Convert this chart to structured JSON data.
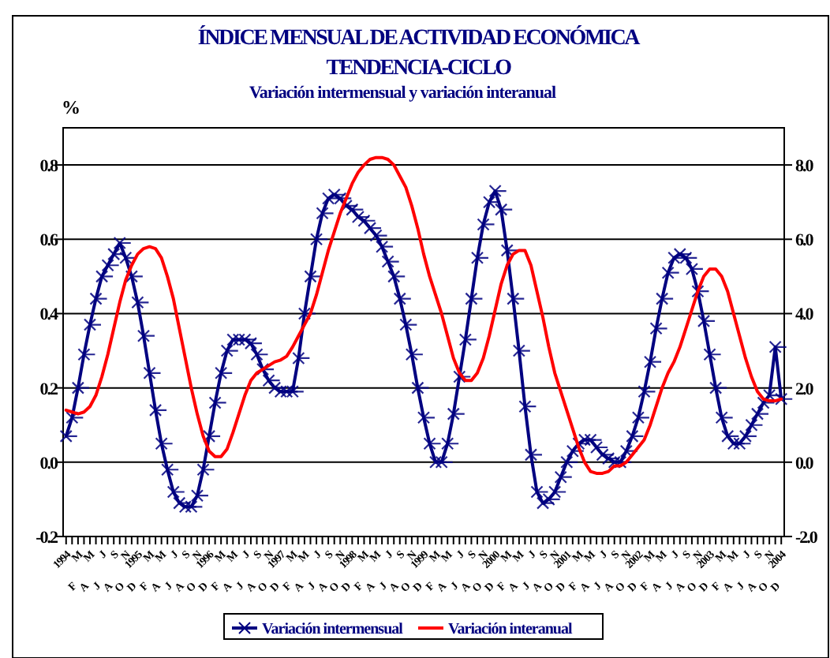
{
  "chart_data": {
    "type": "line",
    "title": "ÍNDICE MENSUAL DE ACTIVIDAD ECONÓMICA\nTENDENCIA-CICLO",
    "subtitle": "Variación intermensual y variación interanual",
    "ylabel": "%",
    "categories": [
      "1994",
      "F",
      "M",
      "A",
      "M",
      "J",
      "J",
      "A",
      "S",
      "O",
      "N",
      "D",
      "1995",
      "F",
      "M",
      "A",
      "M",
      "J",
      "J",
      "A",
      "S",
      "O",
      "N",
      "D",
      "1996",
      "F",
      "M",
      "A",
      "M",
      "J",
      "J",
      "A",
      "S",
      "O",
      "N",
      "D",
      "1997",
      "F",
      "M",
      "A",
      "M",
      "J",
      "J",
      "A",
      "S",
      "O",
      "N",
      "D",
      "1998",
      "F",
      "M",
      "A",
      "M",
      "J",
      "J",
      "A",
      "S",
      "O",
      "N",
      "D",
      "1999",
      "F",
      "M",
      "A",
      "M",
      "J",
      "J",
      "A",
      "S",
      "O",
      "N",
      "D",
      "2000",
      "F",
      "M",
      "A",
      "M",
      "J",
      "J",
      "A",
      "S",
      "O",
      "N",
      "D",
      "2001",
      "F",
      "M",
      "A",
      "M",
      "J",
      "J",
      "A",
      "S",
      "O",
      "N",
      "D",
      "2002",
      "F",
      "M",
      "A",
      "M",
      "J",
      "J",
      "A",
      "S",
      "O",
      "N",
      "D",
      "2003",
      "F",
      "M",
      "A",
      "M",
      "J",
      "J",
      "A",
      "S",
      "O",
      "N",
      "D",
      "2004"
    ],
    "series": [
      {
        "name": "Variación intermensual",
        "color": "#000080",
        "marker": "cross",
        "values": [
          0.07,
          0.12,
          0.2,
          0.29,
          0.37,
          0.44,
          0.5,
          0.53,
          0.56,
          0.59,
          0.55,
          0.5,
          0.43,
          0.34,
          0.24,
          0.14,
          0.05,
          -0.02,
          -0.08,
          -0.11,
          -0.12,
          -0.12,
          -0.09,
          -0.02,
          0.07,
          0.16,
          0.24,
          0.3,
          0.33,
          0.33,
          0.33,
          0.32,
          0.29,
          0.25,
          0.22,
          0.2,
          0.19,
          0.19,
          0.19,
          0.28,
          0.4,
          0.5,
          0.6,
          0.67,
          0.71,
          0.72,
          0.71,
          0.69,
          0.68,
          0.66,
          0.65,
          0.63,
          0.61,
          0.58,
          0.54,
          0.5,
          0.44,
          0.37,
          0.29,
          0.2,
          0.12,
          0.05,
          0.0,
          0.0,
          0.05,
          0.13,
          0.23,
          0.33,
          0.44,
          0.55,
          0.64,
          0.7,
          0.73,
          0.68,
          0.57,
          0.44,
          0.3,
          0.15,
          0.02,
          -0.08,
          -0.11,
          -0.1,
          -0.08,
          -0.04,
          0.0,
          0.03,
          0.05,
          0.06,
          0.06,
          0.04,
          0.02,
          0.01,
          0.0,
          0.0,
          0.03,
          0.07,
          0.12,
          0.19,
          0.27,
          0.36,
          0.44,
          0.51,
          0.55,
          0.56,
          0.55,
          0.52,
          0.46,
          0.38,
          0.29,
          0.2,
          0.12,
          0.07,
          0.05,
          0.05,
          0.07,
          0.1,
          0.13,
          0.16,
          0.18,
          0.31,
          0.17
        ]
      },
      {
        "name": "Variación interanual",
        "color": "#ff0000",
        "axis": "y2",
        "values": [
          1.4,
          1.35,
          1.3,
          1.35,
          1.5,
          1.8,
          2.3,
          2.9,
          3.6,
          4.3,
          4.9,
          5.3,
          5.6,
          5.75,
          5.8,
          5.75,
          5.5,
          5.0,
          4.4,
          3.6,
          2.8,
          2.0,
          1.3,
          0.7,
          0.3,
          0.15,
          0.15,
          0.35,
          0.8,
          1.3,
          1.8,
          2.2,
          2.4,
          2.5,
          2.6,
          2.7,
          2.75,
          2.85,
          3.1,
          3.4,
          3.7,
          4.0,
          4.5,
          5.1,
          5.7,
          6.2,
          6.7,
          7.1,
          7.5,
          7.8,
          8.0,
          8.15,
          8.2,
          8.2,
          8.15,
          8.0,
          7.7,
          7.4,
          6.9,
          6.3,
          5.6,
          5.0,
          4.5,
          4.0,
          3.4,
          2.8,
          2.4,
          2.2,
          2.2,
          2.4,
          2.8,
          3.4,
          4.1,
          4.8,
          5.3,
          5.6,
          5.7,
          5.7,
          5.3,
          4.6,
          3.9,
          3.1,
          2.4,
          1.9,
          1.4,
          0.9,
          0.4,
          0.0,
          -0.25,
          -0.3,
          -0.3,
          -0.25,
          -0.1,
          -0.1,
          0.0,
          0.2,
          0.4,
          0.6,
          1.0,
          1.5,
          2.0,
          2.4,
          2.7,
          3.1,
          3.6,
          4.1,
          4.6,
          5.0,
          5.2,
          5.2,
          5.0,
          4.6,
          4.0,
          3.4,
          2.8,
          2.3,
          1.9,
          1.7,
          1.65,
          1.65,
          1.7
        ]
      }
    ],
    "ylim": [
      -0.2,
      0.9
    ],
    "yticks": [
      {
        "value": 0.8,
        "label": "0.8"
      },
      {
        "value": 0.6,
        "label": "0.6"
      },
      {
        "value": 0.4,
        "label": "0.4"
      },
      {
        "value": 0.2,
        "label": "0.2"
      },
      {
        "value": 0,
        "label": "0.0"
      },
      {
        "value": -0.2,
        "label": "-0.2"
      }
    ],
    "y2lim": [
      -2,
      9
    ],
    "y2ticks": [
      {
        "value": 8,
        "label": "8.0"
      },
      {
        "value": 6,
        "label": "6.0"
      },
      {
        "value": 4,
        "label": "4.0"
      },
      {
        "value": 2,
        "label": "2.0"
      },
      {
        "value": 0,
        "label": "0.0"
      },
      {
        "value": -2,
        "label": "-2.0"
      }
    ],
    "grid": "y",
    "legend": "bottom",
    "line_style": "solid"
  }
}
